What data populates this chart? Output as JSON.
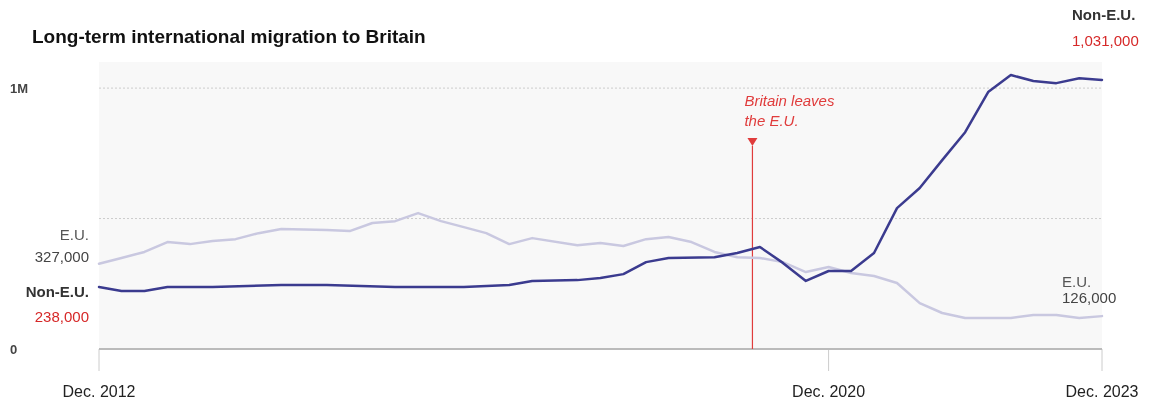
{
  "chart_data": {
    "type": "line",
    "title": "Long-term international migration to Britain",
    "xlim": [
      "2012-12",
      "2023-12"
    ],
    "xticks": [
      {
        "value": "2012-12",
        "label": "Dec. 2012"
      },
      {
        "value": "2020-12",
        "label": "Dec. 2020"
      },
      {
        "value": "2023-12",
        "label": "Dec. 2023"
      }
    ],
    "ylim": [
      0,
      1100000
    ],
    "yticks": [
      0,
      {
        "value": 500000,
        "label": null
      },
      {
        "value": 1000000,
        "label": "1M"
      }
    ],
    "grid": "y",
    "legend": false,
    "series": [
      {
        "name": "E.U.",
        "color": "#c9c8e0",
        "x": [
          "2012-12",
          "2013-03",
          "2013-06",
          "2013-09",
          "2013-12",
          "2014-03",
          "2014-06",
          "2014-09",
          "2014-12",
          "2015-06",
          "2015-09",
          "2015-12",
          "2016-03",
          "2016-06",
          "2016-09",
          "2016-12",
          "2017-03",
          "2017-06",
          "2017-09",
          "2018-03",
          "2018-06",
          "2018-09",
          "2018-12",
          "2019-03",
          "2019-06",
          "2019-09",
          "2019-12",
          "2020-03",
          "2020-06",
          "2020-09",
          "2020-12",
          "2021-03",
          "2021-06",
          "2021-09",
          "2021-12",
          "2022-03",
          "2022-06",
          "2022-12",
          "2023-03",
          "2023-06",
          "2023-09",
          "2023-12"
        ],
        "values": [
          327000,
          349000,
          372000,
          410000,
          402000,
          414000,
          421000,
          444000,
          460000,
          456000,
          452000,
          483000,
          490000,
          521000,
          490000,
          467000,
          444000,
          402000,
          425000,
          398000,
          406000,
          395000,
          421000,
          429000,
          410000,
          372000,
          352000,
          349000,
          333000,
          295000,
          314000,
          291000,
          280000,
          253000,
          176000,
          138000,
          119000,
          119000,
          130000,
          130000,
          119000,
          126000
        ],
        "value_labels": [
          "327,000",
          null,
          null,
          null,
          null,
          null,
          null,
          null,
          null,
          null,
          null,
          null,
          null,
          null,
          null,
          null,
          null,
          null,
          null,
          null,
          null,
          null,
          null,
          null,
          null,
          null,
          null,
          null,
          null,
          null,
          null,
          null,
          null,
          null,
          null,
          null,
          null,
          null,
          null,
          null,
          null,
          "126,000"
        ]
      },
      {
        "name": "Non-E.U.",
        "color": "#3b3b8f",
        "x": [
          "2012-12",
          "2013-03",
          "2013-06",
          "2013-09",
          "2014-03",
          "2014-12",
          "2015-06",
          "2016-03",
          "2016-12",
          "2017-06",
          "2017-09",
          "2018-03",
          "2018-06",
          "2018-09",
          "2018-12",
          "2019-03",
          "2019-09",
          "2019-12",
          "2020-03",
          "2020-06",
          "2020-09",
          "2020-12",
          "2021-03",
          "2021-06",
          "2021-09",
          "2021-12",
          "2022-03",
          "2022-06",
          "2022-09",
          "2022-12",
          "2023-03",
          "2023-06",
          "2023-09",
          "2023-12"
        ],
        "values": [
          238000,
          222000,
          222000,
          238000,
          238000,
          245000,
          245000,
          238000,
          238000,
          245000,
          261000,
          264000,
          272000,
          287000,
          333000,
          349000,
          352000,
          368000,
          391000,
          330000,
          261000,
          299000,
          299000,
          368000,
          540000,
          617000,
          724000,
          831000,
          985000,
          1050000,
          1027000,
          1019000,
          1038000,
          1031000
        ],
        "value_labels": [
          "238,000",
          null,
          null,
          null,
          null,
          null,
          null,
          null,
          null,
          null,
          null,
          null,
          null,
          null,
          null,
          null,
          null,
          null,
          null,
          null,
          null,
          null,
          null,
          null,
          null,
          null,
          null,
          null,
          null,
          null,
          null,
          null,
          null,
          "1,031,000"
        ]
      }
    ],
    "ref_lines": [
      {
        "axis": "x",
        "value": "2020-01-31",
        "label": "Britain leaves\nthe E.U.",
        "color": "#e03c3c"
      }
    ]
  }
}
